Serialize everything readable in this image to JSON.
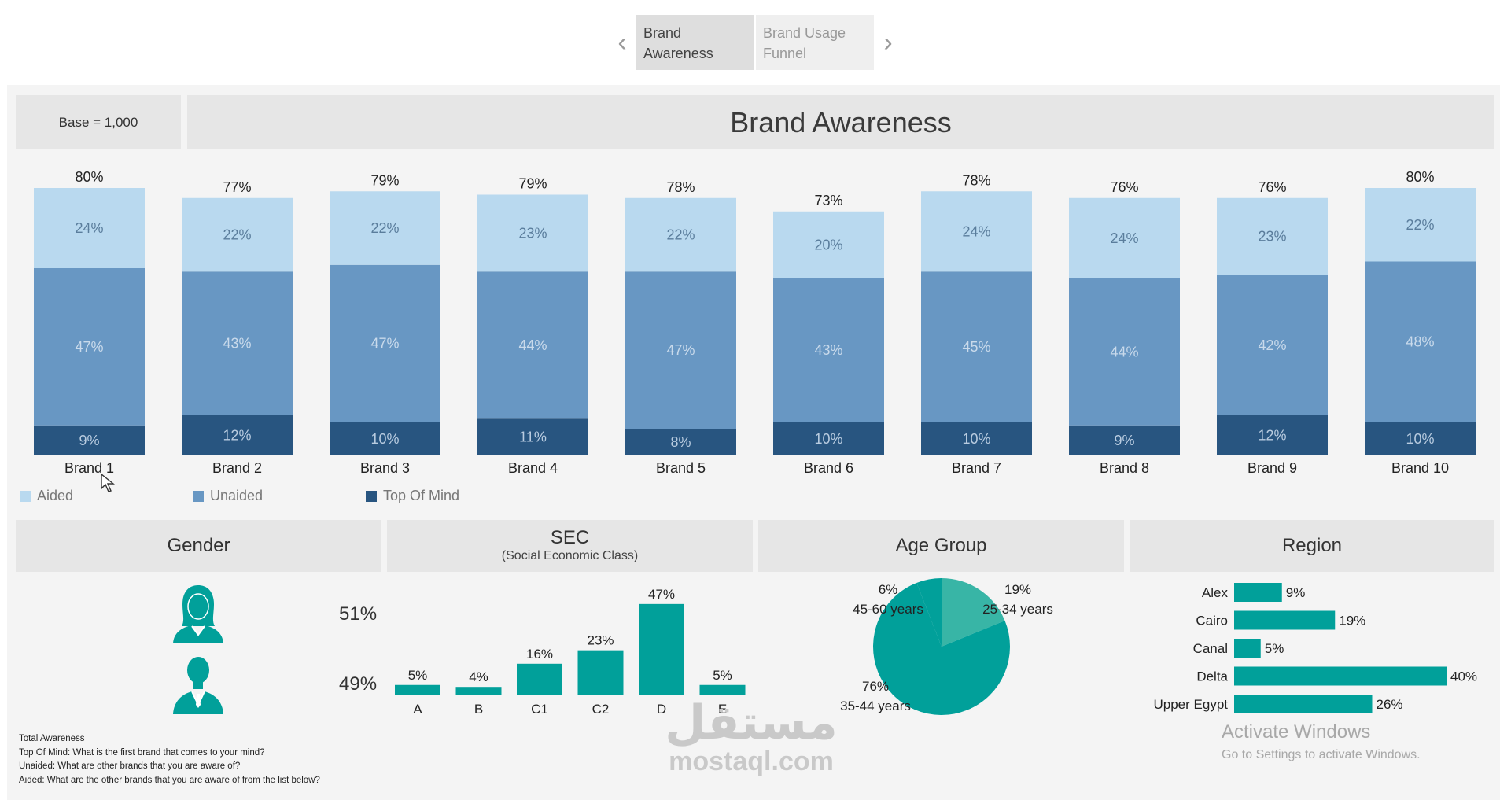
{
  "nav": {
    "tabs": [
      {
        "label_line1": "Brand",
        "label_line2": "Awareness",
        "active": true
      },
      {
        "label_line1": "Brand Usage",
        "label_line2": "Funnel",
        "active": false
      }
    ]
  },
  "header": {
    "base": "Base = 1,000",
    "title": "Brand Awareness"
  },
  "colors": {
    "aided": "#b9d9ef",
    "unaided": "#6897c3",
    "top_of_mind": "#285580",
    "teal": "#01a09a",
    "teal_light": "#38b5a6",
    "header_bg": "#e6e6e6"
  },
  "chart_data": [
    {
      "type": "bar",
      "stacked": true,
      "categories": [
        "Brand 1",
        "Brand 2",
        "Brand 3",
        "Brand 4",
        "Brand 5",
        "Brand 6",
        "Brand 7",
        "Brand 8",
        "Brand 9",
        "Brand 10"
      ],
      "series": [
        {
          "name": "Top Of Mind",
          "values": [
            9,
            12,
            10,
            11,
            8,
            10,
            10,
            9,
            12,
            10
          ]
        },
        {
          "name": "Unaided",
          "values": [
            47,
            43,
            47,
            44,
            47,
            43,
            45,
            44,
            42,
            48
          ]
        },
        {
          "name": "Aided",
          "values": [
            24,
            22,
            22,
            23,
            22,
            20,
            24,
            24,
            23,
            22
          ]
        }
      ],
      "totals": [
        "80%",
        "77%",
        "79%",
        "79%",
        "78%",
        "73%",
        "78%",
        "76%",
        "76%",
        "80%"
      ],
      "legend": [
        "Aided",
        "Unaided",
        "Top Of Mind"
      ],
      "legend_position": "bottom-left",
      "title": "Brand Awareness",
      "ylim": [
        0,
        80
      ]
    },
    {
      "type": "bar",
      "panel": "SEC",
      "categories": [
        "A",
        "B",
        "C1",
        "C2",
        "D",
        "E"
      ],
      "values": [
        5,
        4,
        16,
        23,
        47,
        5
      ],
      "labels": [
        "5%",
        "4%",
        "16%",
        "23%",
        "47%",
        "5%"
      ]
    },
    {
      "type": "pie",
      "panel": "Age Group",
      "slices": [
        {
          "label": "25-34 years",
          "value": 19
        },
        {
          "label": "35-44 years",
          "value": 76
        },
        {
          "label": "45-60 years",
          "value": 6
        }
      ]
    },
    {
      "type": "bar",
      "orientation": "horizontal",
      "panel": "Region",
      "categories": [
        "Alex",
        "Cairo",
        "Canal",
        "Delta",
        "Upper Egypt"
      ],
      "values": [
        9,
        19,
        5,
        40,
        26
      ],
      "labels": [
        "9%",
        "19%",
        "5%",
        "40%",
        "26%"
      ]
    }
  ],
  "panels": {
    "gender": {
      "title": "Gender",
      "female_pct": "51%",
      "male_pct": "49%"
    },
    "sec": {
      "title": "SEC",
      "subtitle": "(Social Economic Class)"
    },
    "age": {
      "title": "Age Group"
    },
    "region": {
      "title": "Region"
    }
  },
  "notes": [
    "Total Awareness",
    "Top Of Mind: What is the first brand that comes to your mind?",
    "Unaided: What are other brands that you are aware of?",
    "Aided: What are the other brands that you are aware of from the list below?"
  ],
  "watermark": {
    "arabic": "مستقل",
    "latin": "mostaql.com"
  },
  "activate": {
    "title": "Activate Windows",
    "subtitle": "Go to Settings to activate Windows."
  }
}
